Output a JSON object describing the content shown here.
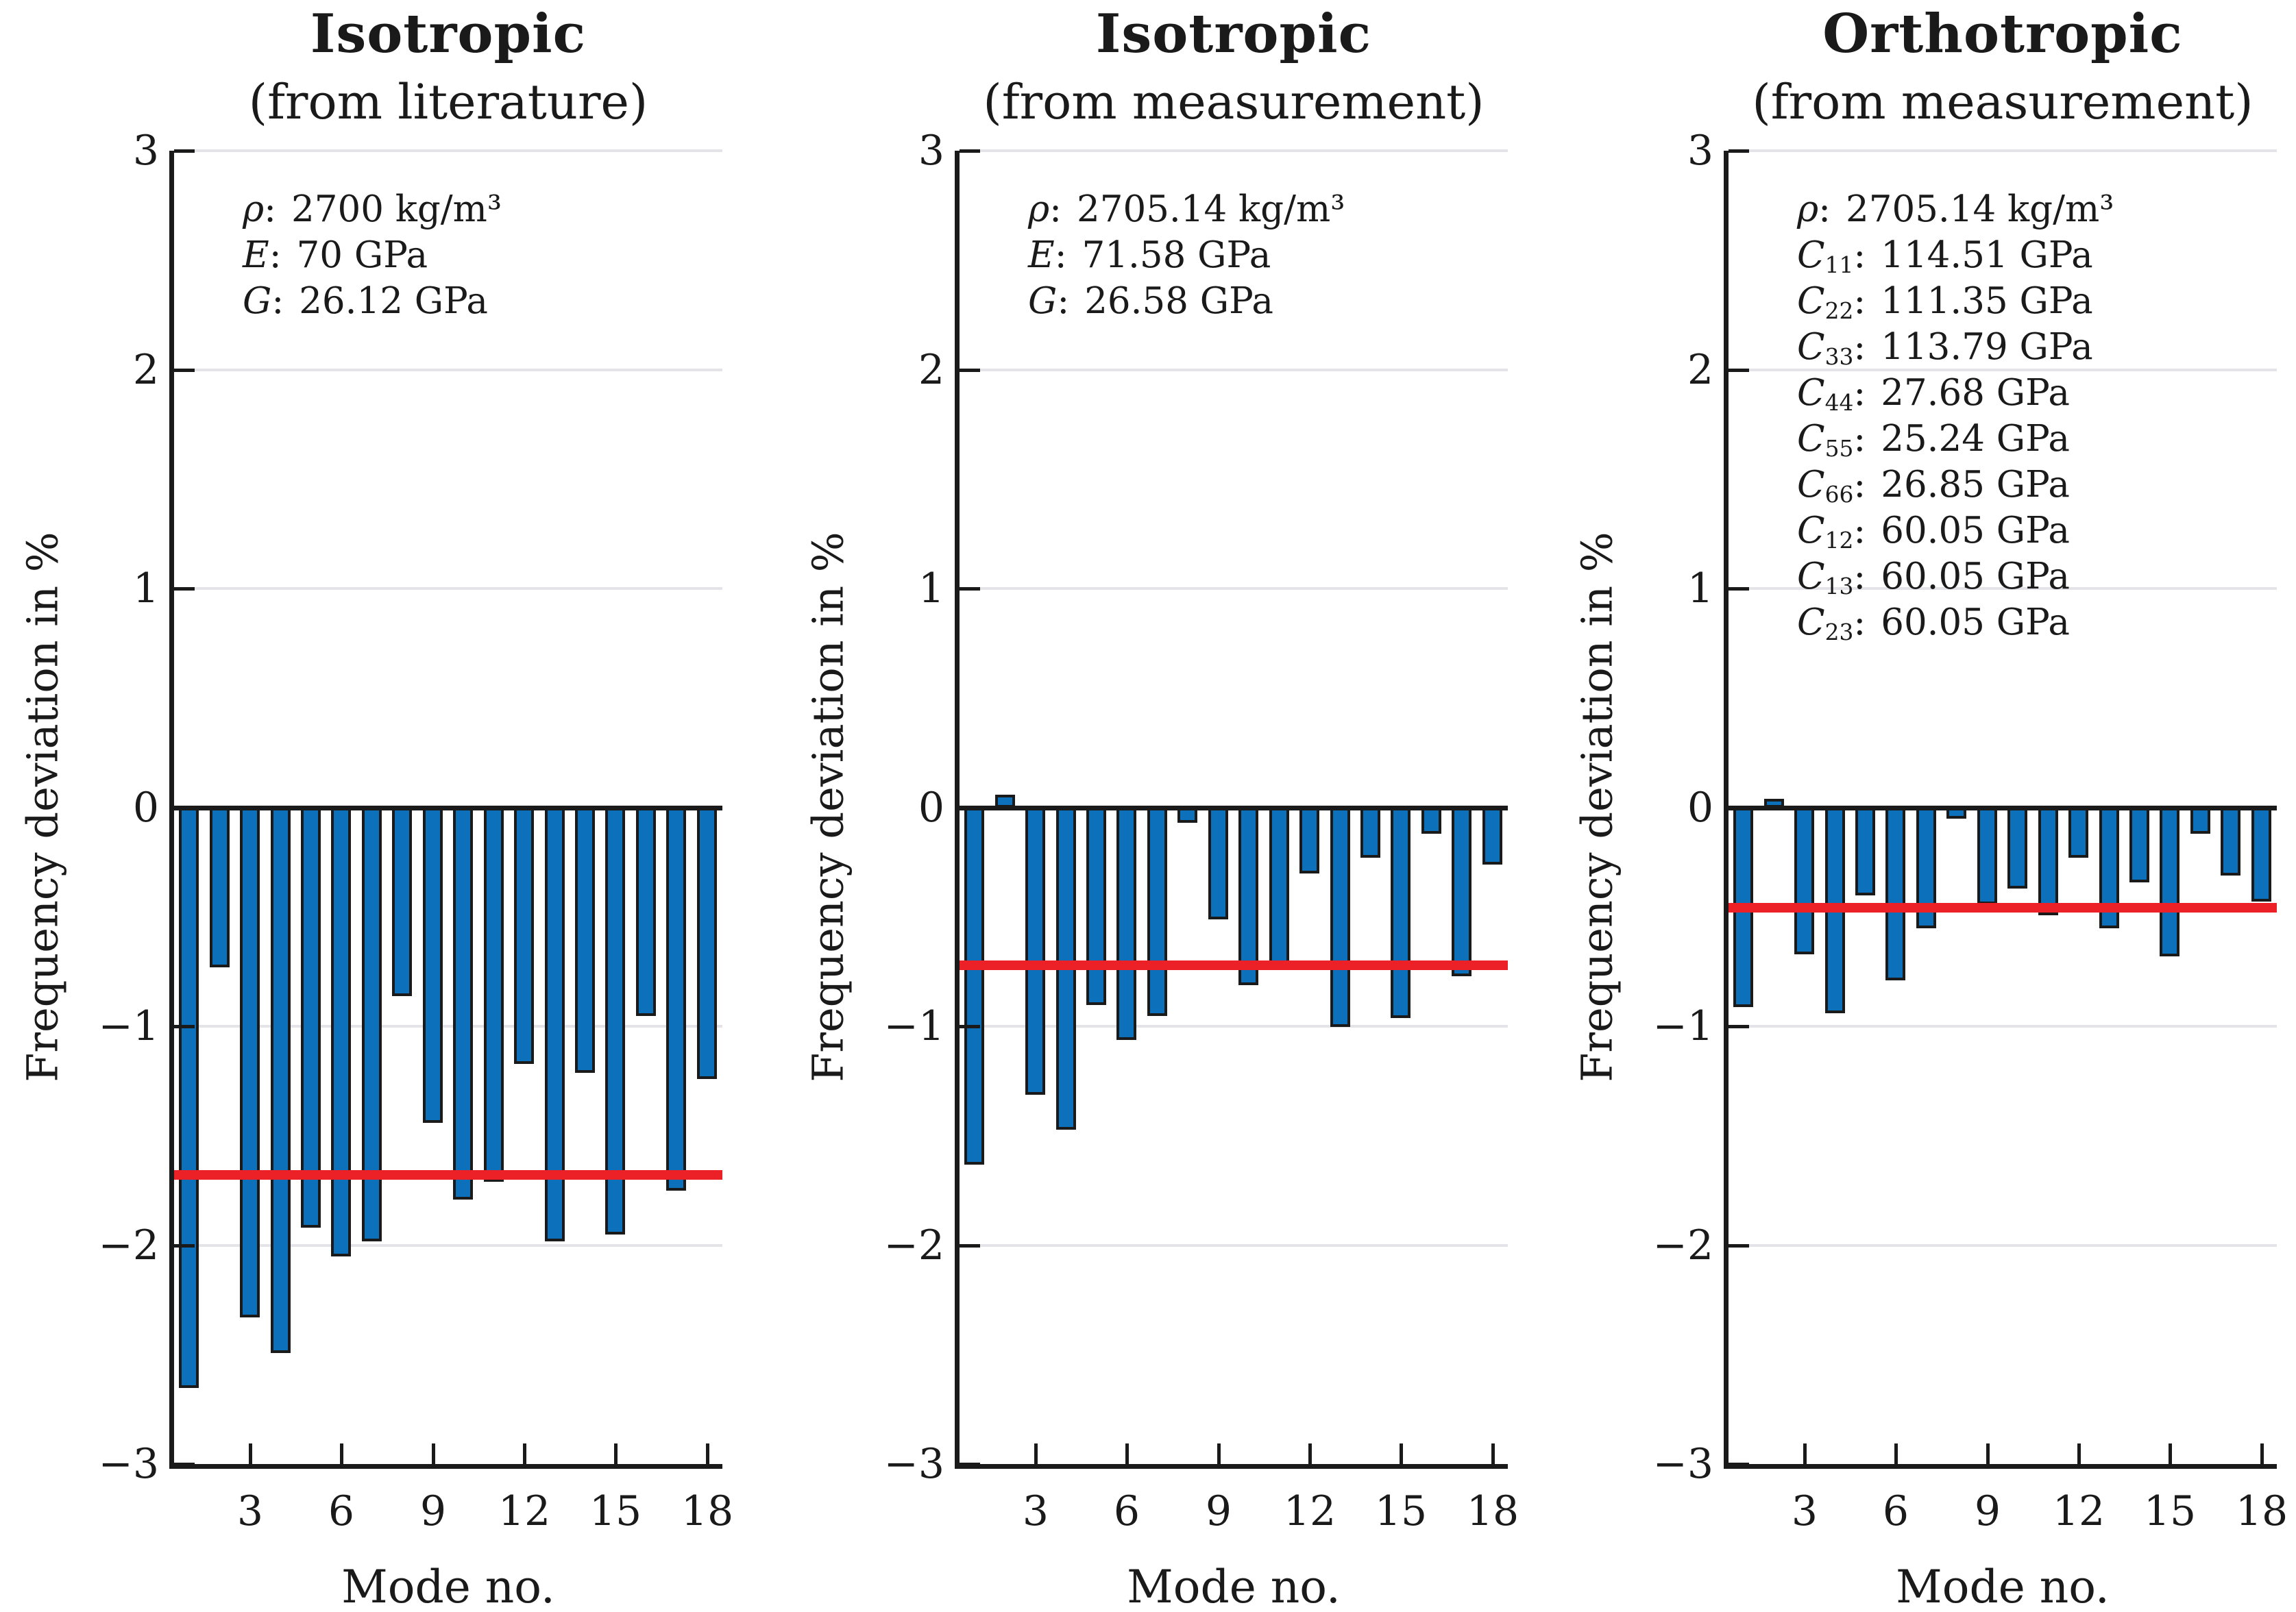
{
  "figure": {
    "ylabel": "Frequency deviation in %",
    "xlabel": "Mode no.",
    "ylim": [
      -3,
      3
    ],
    "y_tick_values": [
      3,
      2,
      1,
      0,
      -1,
      -2,
      -3
    ],
    "y_tick_labels": [
      "3",
      "2",
      "1",
      "0",
      "−1",
      "−2",
      "−3"
    ],
    "y_gridline_values": [
      3,
      2,
      1,
      -1,
      -2
    ],
    "x_tick_values": [
      3,
      6,
      9,
      12,
      15,
      18
    ],
    "n_modes": 18,
    "grid_on": true,
    "legend": "none",
    "colors": {
      "bar_fill": "#0C71BA",
      "bar_edge": "#1A1A1A",
      "mean_line": "#EC2127",
      "gridline": "#E4E4E8",
      "axis": "#1A1A1A",
      "background": "#FFFFFF",
      "text": "#1A1A1A"
    }
  },
  "chart_data": [
    {
      "type": "bar",
      "title": "Isotropic",
      "subtitle": "(from literature)",
      "params": [
        {
          "sym": "ρ",
          "sub": "",
          "value": "2700 kg/m³"
        },
        {
          "sym": "E",
          "sub": "",
          "value": "70 GPa"
        },
        {
          "sym": "G",
          "sub": "",
          "value": "26.12 GPa"
        }
      ],
      "x": [
        1,
        2,
        3,
        4,
        5,
        6,
        7,
        8,
        9,
        10,
        11,
        12,
        13,
        14,
        15,
        16,
        17,
        18
      ],
      "values": [
        -2.65,
        -0.73,
        -2.33,
        -2.49,
        -1.92,
        -2.05,
        -1.98,
        -0.86,
        -1.44,
        -1.79,
        -1.71,
        -1.17,
        -1.98,
        -1.21,
        -1.95,
        -0.95,
        -1.75,
        -1.24
      ],
      "mean": -1.68
    },
    {
      "type": "bar",
      "title": "Isotropic",
      "subtitle": "(from measurement)",
      "params": [
        {
          "sym": "ρ",
          "sub": "",
          "value": "2705.14 kg/m³"
        },
        {
          "sym": "E",
          "sub": "",
          "value": "71.58 GPa"
        },
        {
          "sym": "G",
          "sub": "",
          "value": "26.58 GPa"
        }
      ],
      "x": [
        1,
        2,
        3,
        4,
        5,
        6,
        7,
        8,
        9,
        10,
        11,
        12,
        13,
        14,
        15,
        16,
        17,
        18
      ],
      "values": [
        -1.63,
        0.06,
        -1.31,
        -1.47,
        -0.9,
        -1.06,
        -0.95,
        -0.07,
        -0.51,
        -0.81,
        -0.72,
        -0.3,
        -1.0,
        -0.23,
        -0.96,
        -0.12,
        -0.77,
        -0.26
      ],
      "mean": -0.72
    },
    {
      "type": "bar",
      "title": "Orthotropic",
      "subtitle": "(from measurement)",
      "params": [
        {
          "sym": "ρ",
          "sub": "",
          "value": "2705.14 kg/m³"
        },
        {
          "sym": "C",
          "sub": "11",
          "value": "114.51 GPa"
        },
        {
          "sym": "C",
          "sub": "22",
          "value": "111.35 GPa"
        },
        {
          "sym": "C",
          "sub": "33",
          "value": "113.79 GPa"
        },
        {
          "sym": "C",
          "sub": "44",
          "value": "27.68 GPa"
        },
        {
          "sym": "C",
          "sub": "55",
          "value": "25.24 GPa"
        },
        {
          "sym": "C",
          "sub": "66",
          "value": "26.85 GPa"
        },
        {
          "sym": "C",
          "sub": "12",
          "value": "60.05 GPa"
        },
        {
          "sym": "C",
          "sub": "13",
          "value": "60.05 GPa"
        },
        {
          "sym": "C",
          "sub": "23",
          "value": "60.05 GPa"
        }
      ],
      "x": [
        1,
        2,
        3,
        4,
        5,
        6,
        7,
        8,
        9,
        10,
        11,
        12,
        13,
        14,
        15,
        16,
        17,
        18
      ],
      "values": [
        -0.91,
        0.04,
        -0.67,
        -0.94,
        -0.4,
        -0.79,
        -0.55,
        -0.05,
        -0.44,
        -0.37,
        -0.49,
        -0.23,
        -0.55,
        -0.34,
        -0.68,
        -0.12,
        -0.31,
        -0.43
      ],
      "mean": -0.46
    }
  ]
}
